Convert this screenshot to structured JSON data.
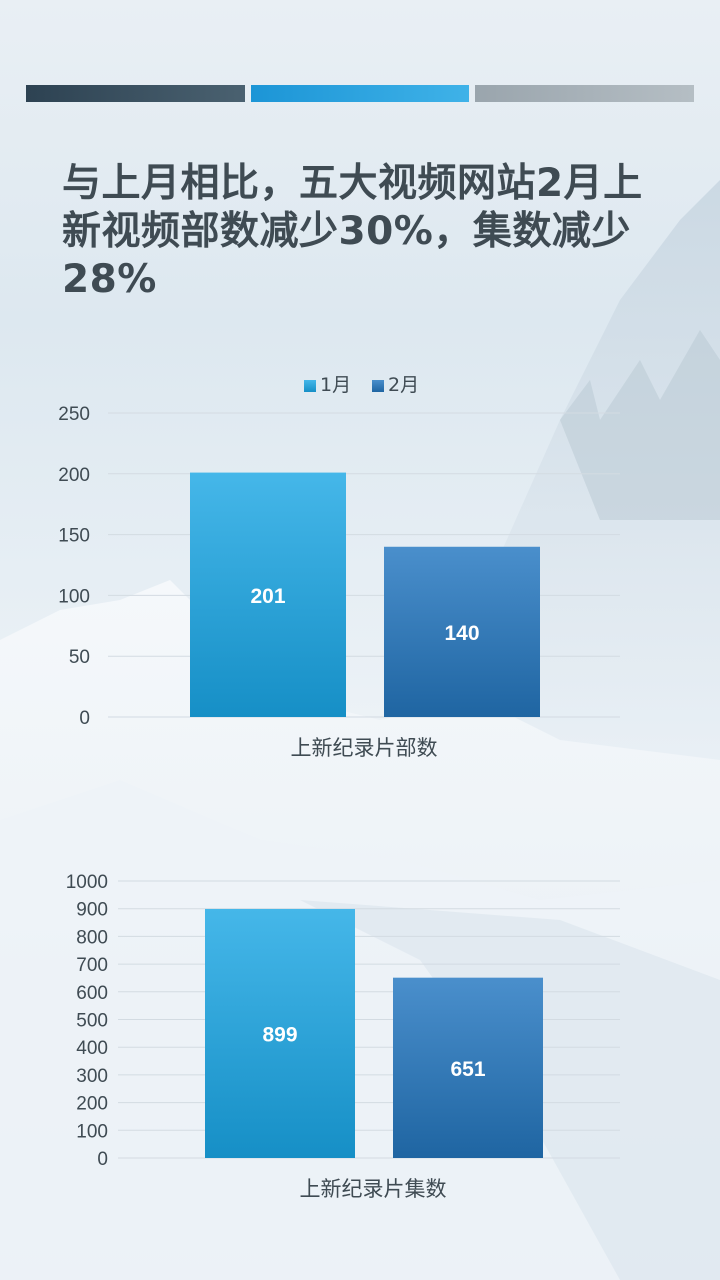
{
  "title": "与上月相比，五大视频网站2月上新视频部数减少30%，集数减少28%",
  "colors": {
    "series1": "#2aa3dc",
    "series2": "#3a7fbd",
    "axis_text": "#3f4b53",
    "bar_dark": "#2d4252",
    "bar_blue": "#1c95d6",
    "bar_gray": "#9aa5ad"
  },
  "chart_data": [
    {
      "type": "bar",
      "legend": "top-center",
      "series": [
        {
          "name": "1月",
          "values": [
            201
          ]
        },
        {
          "name": "2月",
          "values": [
            140
          ]
        }
      ],
      "xlabel": "上新纪录片部数",
      "ylim": [
        0,
        250
      ],
      "yticks": [
        0,
        50,
        100,
        150,
        200,
        250
      ],
      "grid": true
    },
    {
      "type": "bar",
      "series": [
        {
          "name": "1月",
          "values": [
            899
          ]
        },
        {
          "name": "2月",
          "values": [
            651
          ]
        }
      ],
      "xlabel": "上新纪录片集数",
      "ylim": [
        0,
        1000
      ],
      "yticks": [
        0,
        100,
        200,
        300,
        400,
        500,
        600,
        700,
        800,
        900,
        1000
      ],
      "grid": true
    }
  ]
}
